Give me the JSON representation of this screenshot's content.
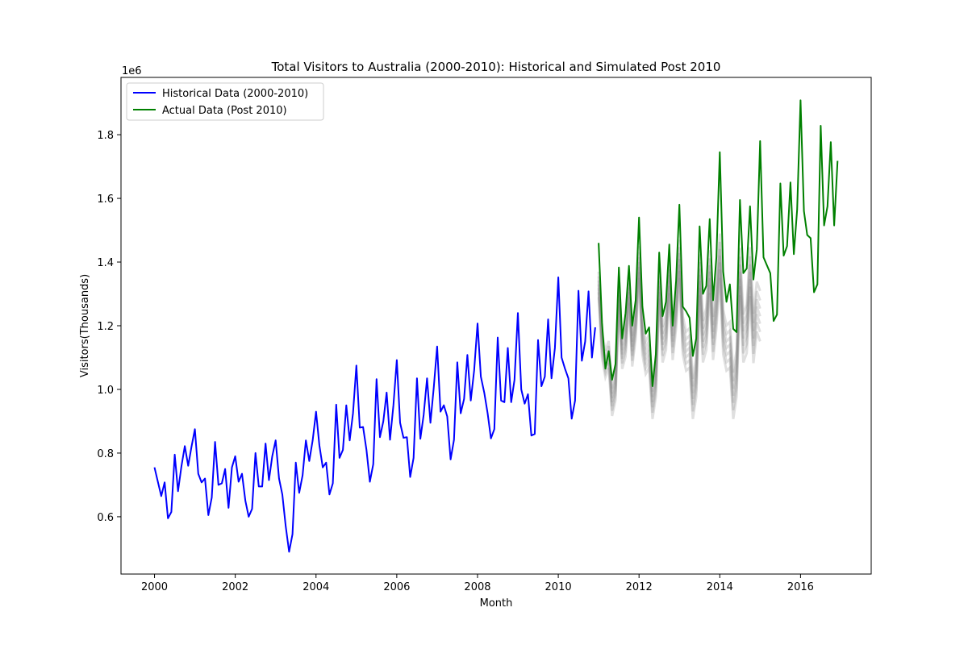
{
  "chart_data": {
    "type": "line",
    "title": "Total Visitors to Australia (2000-2010): Historical and Simulated Post 2010",
    "xlabel": "Month",
    "ylabel": "Visitors(Thousands)",
    "y_offset_label": "1e6",
    "xlim": [
      1999.17,
      2017.75
    ],
    "ylim": [
      420000,
      1980000
    ],
    "x_ticks": [
      2000,
      2002,
      2004,
      2006,
      2008,
      2010,
      2012,
      2014,
      2016
    ],
    "y_ticks": [
      0.6,
      0.8,
      1.0,
      1.2,
      1.4,
      1.6,
      1.8
    ],
    "y_tick_scale": 1000000,
    "legend_position": "top-left",
    "grid": false,
    "series": [
      {
        "name": "Historical Data (2000-2010)",
        "color": "#0000ff",
        "x_start": 2000,
        "step": 0.08333,
        "values": [
          755000,
          710000,
          665000,
          708000,
          595000,
          615000,
          795000,
          680000,
          758000,
          822000,
          760000,
          820000,
          875000,
          735000,
          708000,
          720000,
          605000,
          660000,
          835000,
          700000,
          705000,
          750000,
          628000,
          755000,
          790000,
          710000,
          735000,
          650000,
          600000,
          625000,
          800000,
          695000,
          695000,
          830000,
          715000,
          790000,
          840000,
          720000,
          670000,
          570000,
          490000,
          545000,
          770000,
          675000,
          730000,
          840000,
          775000,
          840000,
          930000,
          825000,
          755000,
          770000,
          670000,
          705000,
          952000,
          785000,
          810000,
          950000,
          840000,
          925000,
          1075000,
          880000,
          882000,
          810000,
          710000,
          765000,
          1032000,
          850000,
          900000,
          990000,
          842000,
          950000,
          1092000,
          895000,
          848000,
          850000,
          725000,
          785000,
          1035000,
          845000,
          920000,
          1035000,
          895000,
          1005000,
          1135000,
          930000,
          950000,
          915000,
          780000,
          842000,
          1085000,
          925000,
          970000,
          1108000,
          965000,
          1060000,
          1207000,
          1040000,
          990000,
          925000,
          846000,
          875000,
          1163000,
          965000,
          960000,
          1130000,
          960000,
          1030000,
          1240000,
          1000000,
          955000,
          985000,
          855000,
          860000,
          1155000,
          1010000,
          1040000,
          1220000,
          1035000,
          1130000,
          1352000,
          1100000,
          1065000,
          1035000,
          908000,
          965000,
          1310000,
          1090000,
          1150000,
          1308000,
          1100000,
          1195000
        ]
      },
      {
        "name": "Actual Data (Post 2010)",
        "color": "#008000",
        "x_start": 2011,
        "step": 0.08333,
        "values": [
          1460000,
          1210000,
          1065000,
          1120000,
          1030000,
          1080000,
          1383000,
          1160000,
          1240000,
          1388000,
          1200000,
          1280000,
          1540000,
          1260000,
          1175000,
          1195000,
          1010000,
          1110000,
          1430000,
          1230000,
          1275000,
          1455000,
          1200000,
          1340000,
          1580000,
          1260000,
          1245000,
          1225000,
          1105000,
          1160000,
          1512000,
          1300000,
          1325000,
          1535000,
          1280000,
          1415000,
          1745000,
          1370000,
          1275000,
          1330000,
          1190000,
          1180000,
          1595000,
          1365000,
          1380000,
          1575000,
          1345000,
          1440000,
          1780000,
          1415000,
          1390000,
          1365000,
          1215000,
          1235000,
          1647000,
          1420000,
          1450000,
          1650000,
          1425000,
          1565000,
          1908000,
          1560000,
          1485000,
          1475000,
          1305000,
          1330000,
          1828000,
          1515000,
          1575000,
          1777000,
          1515000,
          1718000
        ]
      },
      {
        "type": "simulation-band",
        "color": "#808080",
        "x_start": 2011,
        "step": 0.08333,
        "values": [
          1330000,
          1140000,
          1080000,
          1110000,
          960000,
          1010000,
          1310000,
          1110000,
          1150000,
          1320000,
          1120000,
          1210000,
          1400000,
          1160000,
          1100000,
          1120000,
          960000,
          1030000,
          1340000,
          1140000,
          1180000,
          1360000,
          1150000,
          1250000,
          1410000,
          1170000,
          1120000,
          1130000,
          970000,
          1040000,
          1360000,
          1150000,
          1190000,
          1370000,
          1160000,
          1260000,
          1420000,
          1180000,
          1130000,
          1140000,
          980000,
          1050000,
          1370000,
          1160000,
          1190000,
          1370000,
          1160000,
          1260000,
          1230000
        ]
      }
    ]
  }
}
